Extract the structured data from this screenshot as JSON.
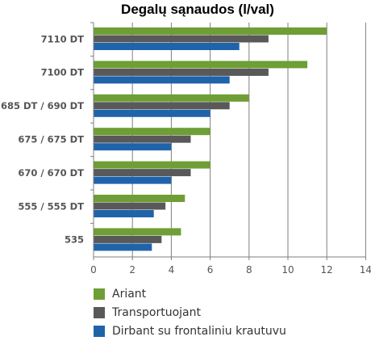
{
  "chart_data": {
    "type": "bar",
    "orientation": "horizontal",
    "title": "Degalų sąnaudos (l/val)",
    "xlabel": "",
    "ylabel": "",
    "xlim": [
      0,
      14
    ],
    "xticks": [
      0,
      2,
      4,
      6,
      8,
      10,
      12,
      14
    ],
    "grid": "vertical",
    "legend_position": "bottom",
    "categories": [
      "7110 DT",
      "7100 DT",
      "685 DT / 690 DT",
      "675 / 675 DT",
      "670 / 670 DT",
      "555 / 555 DT",
      "535"
    ],
    "series": [
      {
        "name": "Ariant",
        "color": "#6e9e35",
        "values": [
          12,
          11,
          8,
          6,
          6,
          4.7,
          4.5
        ]
      },
      {
        "name": "Transportuojant",
        "color": "#595959",
        "values": [
          9,
          9,
          7,
          5,
          5,
          3.7,
          3.5
        ]
      },
      {
        "name": "Dirbant su frontaliniu krautuvu",
        "color": "#1f64aa",
        "values": [
          7.5,
          7,
          6,
          4,
          4,
          3.1,
          3
        ]
      }
    ]
  }
}
